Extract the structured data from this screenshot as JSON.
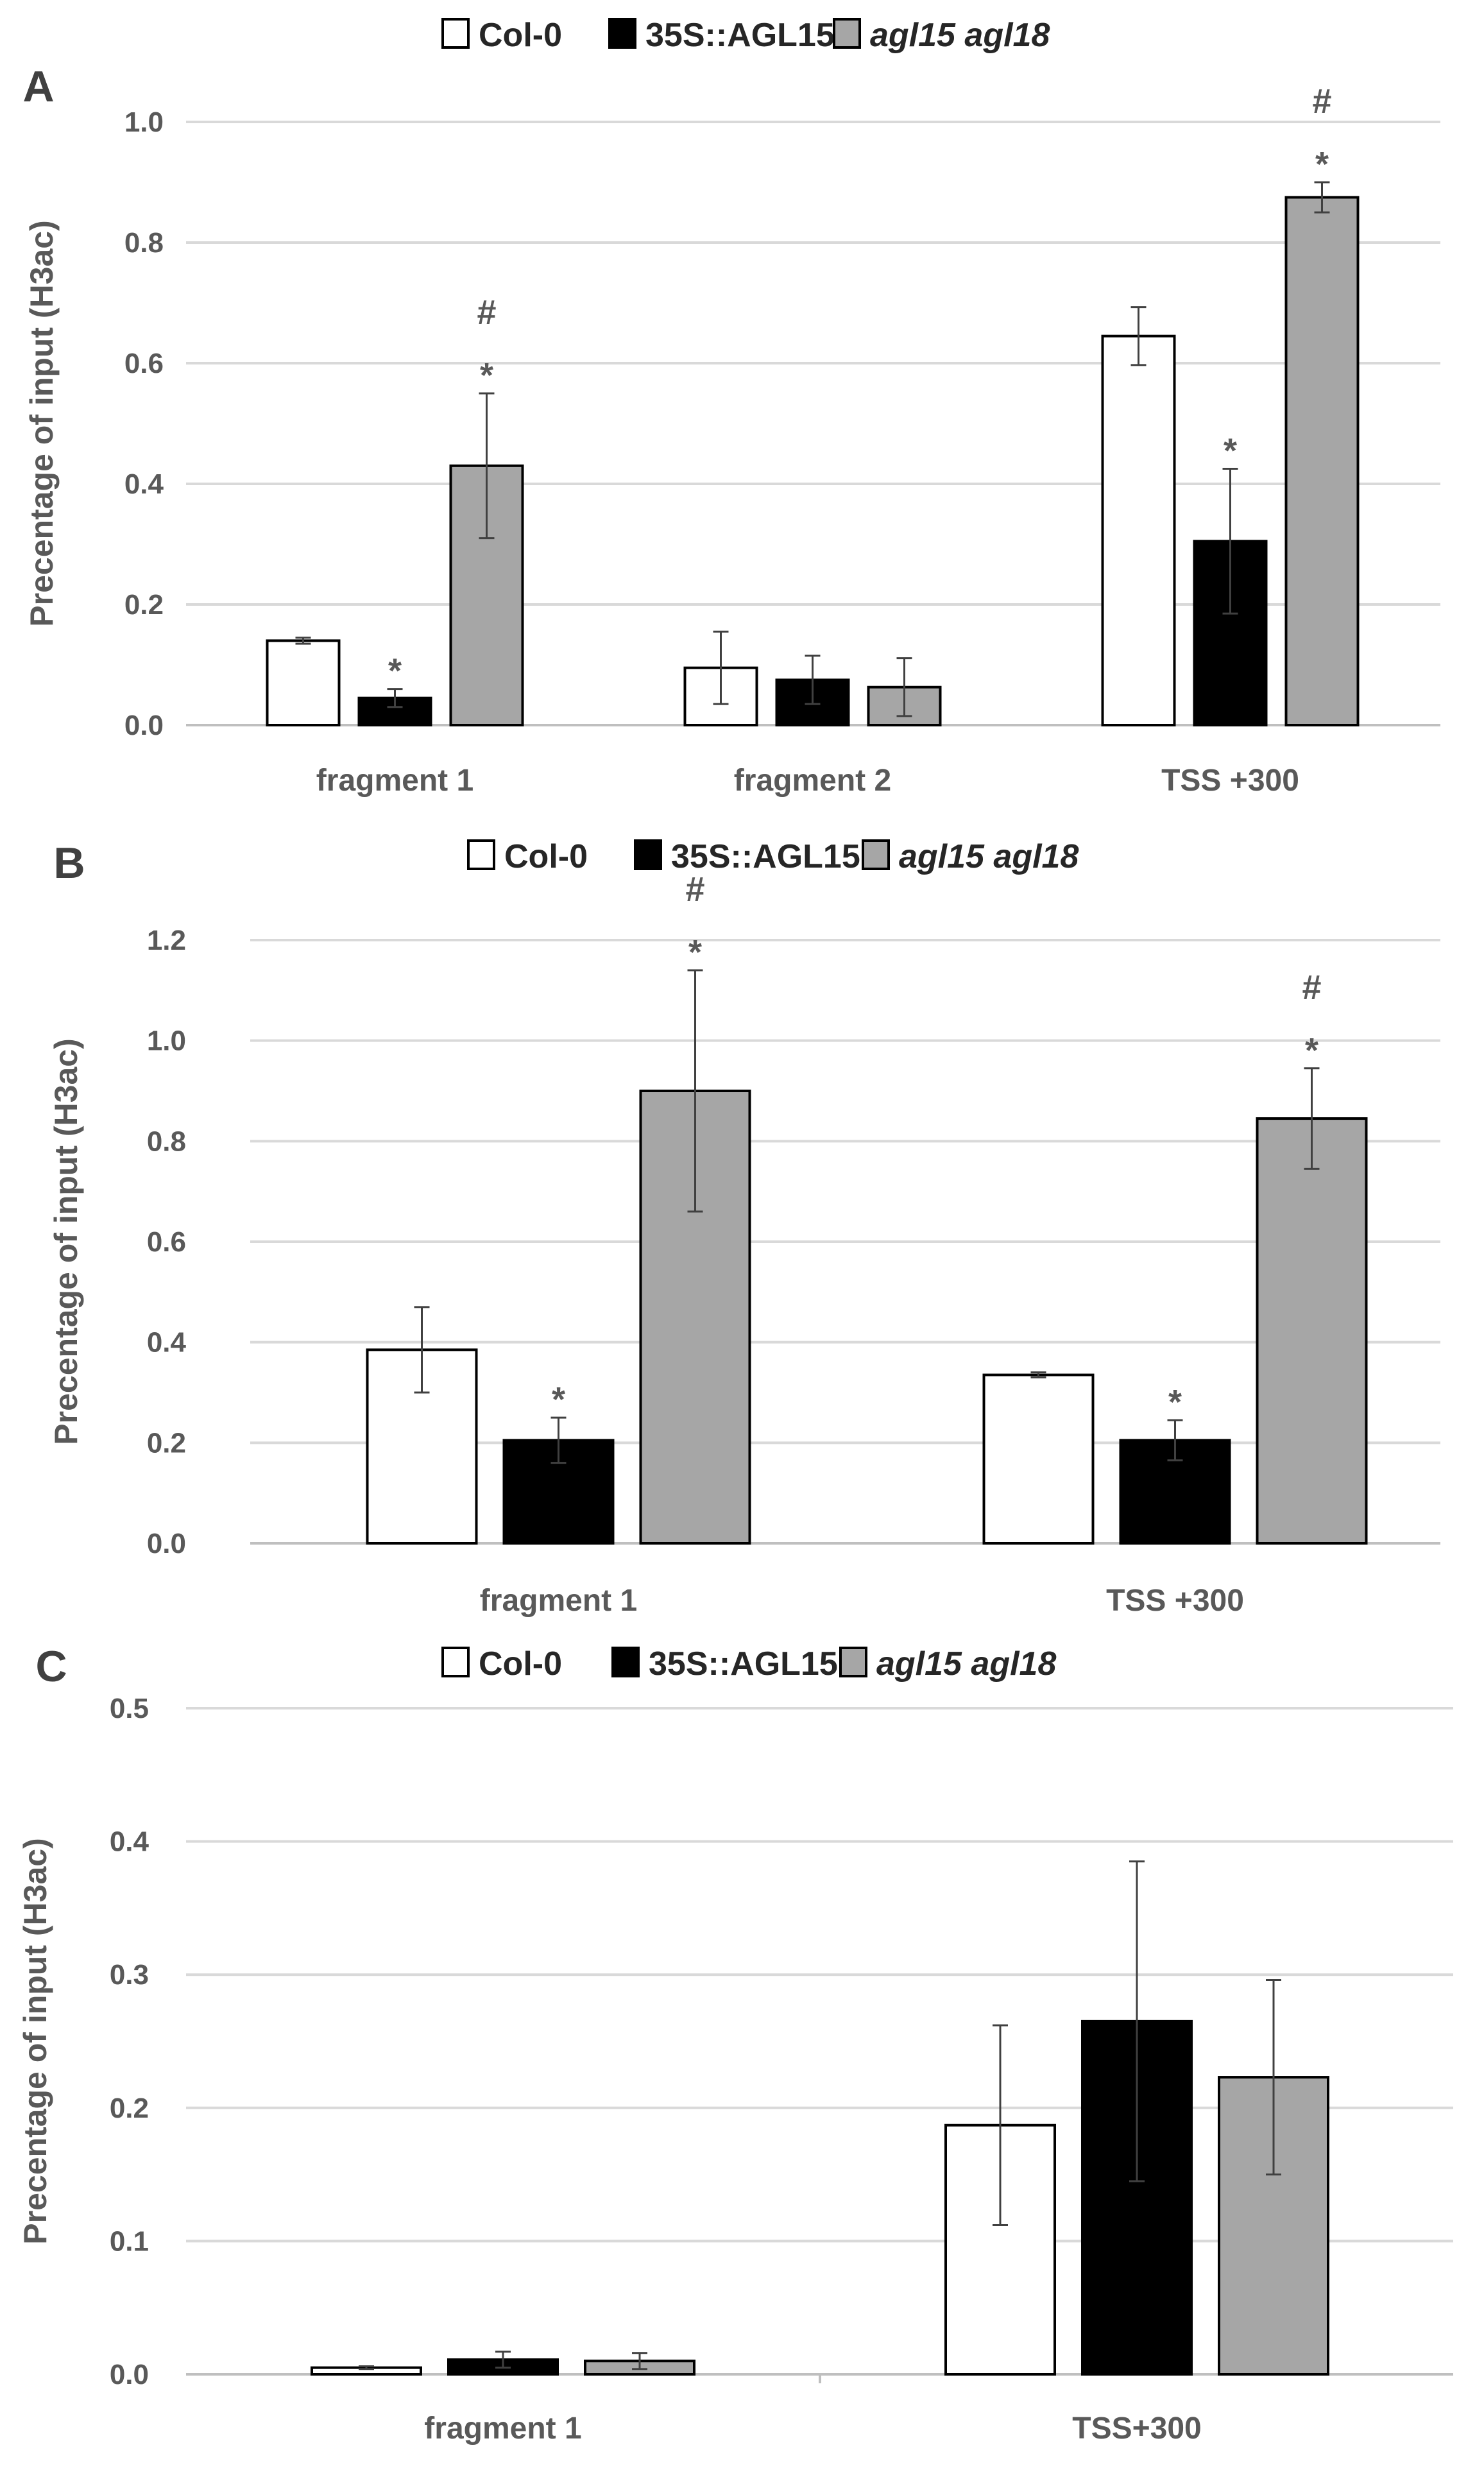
{
  "legend": [
    {
      "name": "Col-0",
      "color": "#ffffff",
      "italic": false
    },
    {
      "name": "35S::AGL15",
      "color": "#000000",
      "italic": false
    },
    {
      "name": "agl15 agl18",
      "color": "#a6a6a6",
      "italic": true
    }
  ],
  "chart_data": [
    {
      "type": "bar",
      "panel": "A",
      "ylabel": "Precentage of  input (H3ac)",
      "ylim": [
        0,
        1.0
      ],
      "yticks": [
        "0.0",
        "0.2",
        "0.4",
        "0.6",
        "0.8",
        "1.0"
      ],
      "categories": [
        "fragment 1",
        "fragment 2",
        "TSS +300"
      ],
      "series": [
        {
          "name": "Col-0",
          "values": [
            0.14,
            0.095,
            0.645
          ],
          "errors": [
            0.005,
            0.06,
            0.048
          ],
          "marks": [
            "",
            "",
            ""
          ]
        },
        {
          "name": "35S::AGL15",
          "values": [
            0.045,
            0.075,
            0.305
          ],
          "errors": [
            0.015,
            0.04,
            0.12
          ],
          "marks": [
            "*",
            "",
            "*"
          ]
        },
        {
          "name": "agl15 agl18",
          "values": [
            0.43,
            0.063,
            0.875
          ],
          "errors": [
            0.12,
            0.048,
            0.025
          ],
          "marks": [
            "#\n*",
            "",
            "#\n*"
          ]
        }
      ]
    },
    {
      "type": "bar",
      "panel": "B",
      "ylabel": "Precentage of input (H3ac)",
      "ylim": [
        0,
        1.2
      ],
      "yticks": [
        "0.0",
        "0.2",
        "0.4",
        "0.6",
        "0.8",
        "1.0",
        "1.2"
      ],
      "categories": [
        "fragment 1",
        "TSS +300"
      ],
      "series": [
        {
          "name": "Col-0",
          "values": [
            0.385,
            0.335
          ],
          "errors": [
            0.085,
            0.005
          ],
          "marks": [
            "",
            ""
          ]
        },
        {
          "name": "35S::AGL15",
          "values": [
            0.205,
            0.205
          ],
          "errors": [
            0.045,
            0.04
          ],
          "marks": [
            "*",
            "*"
          ]
        },
        {
          "name": "agl15 agl18",
          "values": [
            0.9,
            0.845
          ],
          "errors": [
            0.24,
            0.1
          ],
          "marks": [
            "#\n*",
            "#\n*"
          ]
        }
      ]
    },
    {
      "type": "bar",
      "panel": "C",
      "ylabel": "Precentage of input (H3ac)",
      "ylim": [
        0,
        0.5
      ],
      "yticks": [
        "0.0",
        "0.1",
        "0.2",
        "0.3",
        "0.4",
        "0.5"
      ],
      "categories": [
        "fragment 1",
        "TSS+300"
      ],
      "series": [
        {
          "name": "Col-0",
          "values": [
            0.005,
            0.187
          ],
          "errors": [
            0.001,
            0.075
          ],
          "marks": [
            "",
            ""
          ]
        },
        {
          "name": "35S::AGL15",
          "values": [
            0.011,
            0.265
          ],
          "errors": [
            0.006,
            0.12
          ],
          "marks": [
            "",
            ""
          ]
        },
        {
          "name": "agl15 agl18",
          "values": [
            0.01,
            0.223
          ],
          "errors": [
            0.006,
            0.073
          ],
          "marks": [
            "",
            ""
          ]
        }
      ]
    }
  ]
}
